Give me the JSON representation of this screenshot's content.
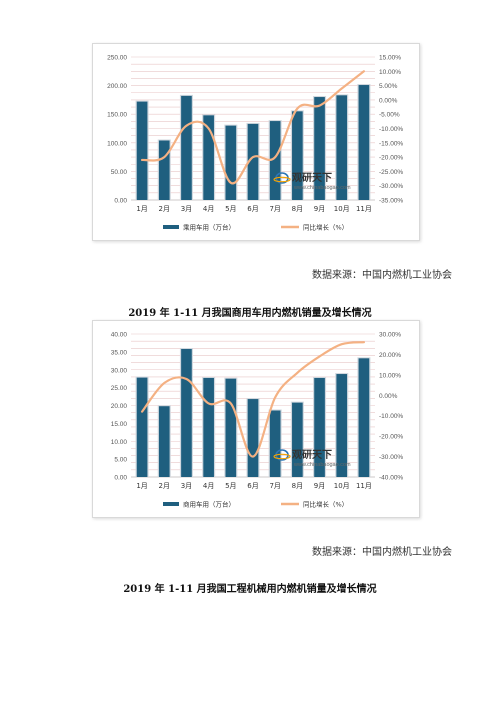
{
  "page": {
    "source_1": "数据来源：中国内燃机工业协会",
    "title_2": "2019 年 1-11 月我国商用车用内燃机销量及增长情况",
    "source_2": "数据来源：中国内燃机工业协会",
    "title_3": "2019 年 1-11 月我国工程机械用内燃机销量及增长情况",
    "watermark_cn": "观研天下",
    "watermark_url": "www.chinabaogao.com",
    "colors": {
      "bar": "#1f5f7f",
      "line": "#f4b183",
      "grid": "#e8c7c7"
    }
  },
  "chart_data": [
    {
      "type": "bar",
      "title": "",
      "categories": [
        "1月",
        "2月",
        "3月",
        "4月",
        "5月",
        "6月",
        "7月",
        "8月",
        "9月",
        "10月",
        "11月"
      ],
      "series": [
        {
          "name": "乘用车用（万台）",
          "kind": "bar",
          "axis": "left",
          "values": [
            172,
            104,
            182,
            148,
            130,
            133,
            138,
            155,
            180,
            183,
            201
          ]
        },
        {
          "name": "同比增长（%）",
          "kind": "line",
          "axis": "right",
          "values": [
            -21,
            -20,
            -9,
            -10,
            -29,
            -20,
            -20,
            -3,
            -2,
            4,
            10
          ]
        }
      ],
      "left_axis": {
        "min": 0,
        "max": 250,
        "step": 50,
        "tick_labels": [
          "0.00",
          "50.00",
          "100.00",
          "150.00",
          "200.00",
          "250.00"
        ]
      },
      "right_axis": {
        "min": -35,
        "max": 15,
        "step": 5,
        "tick_labels": [
          "-35.00%",
          "-30.00%",
          "-25.00%",
          "-20.00%",
          "-15.00%",
          "-10.00%",
          "-5.00%",
          "0.00%",
          "5.00%",
          "10.00%",
          "15.00%"
        ]
      },
      "grid": true,
      "legend_position": "bottom"
    },
    {
      "type": "bar",
      "title": "",
      "categories": [
        "1月",
        "2月",
        "3月",
        "4月",
        "5月",
        "6月",
        "7月",
        "8月",
        "9月",
        "10月",
        "11月"
      ],
      "series": [
        {
          "name": "商用车用（万台）",
          "kind": "bar",
          "axis": "left",
          "values": [
            27.8,
            19.8,
            35.8,
            27.7,
            27.5,
            21.8,
            18.6,
            20.8,
            27.7,
            28.8,
            33.2
          ]
        },
        {
          "name": "同比增长（%）",
          "kind": "line",
          "axis": "right",
          "values": [
            -8,
            6,
            8,
            -4,
            -4,
            -30,
            -1,
            11,
            19,
            25,
            26
          ]
        }
      ],
      "left_axis": {
        "min": 0,
        "max": 40,
        "step": 5,
        "tick_labels": [
          "0.00",
          "5.00",
          "10.00",
          "15.00",
          "20.00",
          "25.00",
          "30.00",
          "35.00",
          "40.00"
        ]
      },
      "right_axis": {
        "min": -40,
        "max": 30,
        "step": 10,
        "tick_labels": [
          "-40.00%",
          "-30.00%",
          "-20.00%",
          "-10.00%",
          "0.00%",
          "10.00%",
          "20.00%",
          "30.00%"
        ]
      },
      "grid": true,
      "legend_position": "bottom"
    }
  ]
}
